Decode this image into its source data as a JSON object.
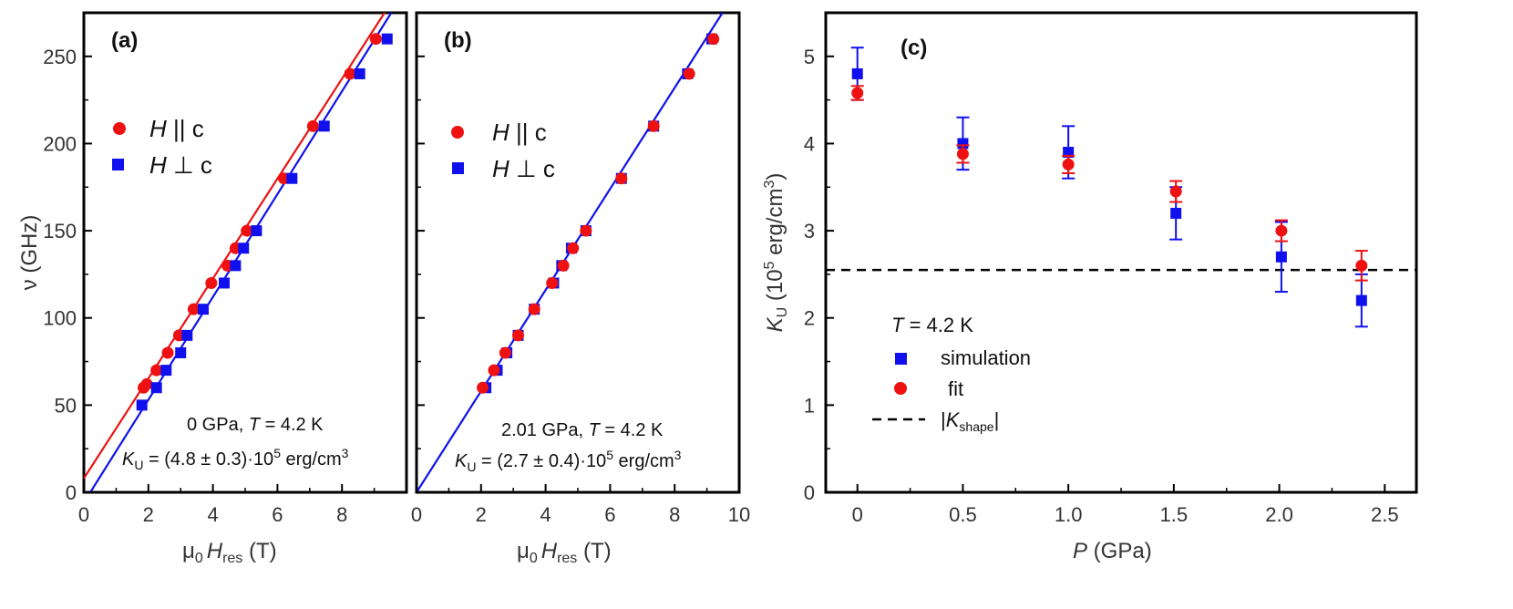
{
  "colors": {
    "red": "#ee1111",
    "blue": "#1010ee",
    "text": "#333333"
  },
  "chart_data": [
    {
      "type": "scatter",
      "panel": "(a)",
      "xlabel_base": "μ",
      "xlabel_sub0": "0",
      "xlabel_H": "H",
      "xlabel_sub": "res",
      "xlabel_unit": " (T)",
      "ylabel": "ν (GHz)",
      "xlim": [
        0,
        10
      ],
      "ylim": [
        0,
        275
      ],
      "xticks": [
        "0",
        "2",
        "4",
        "6",
        "8"
      ],
      "yticks": [
        "0",
        "50",
        "100",
        "150",
        "200",
        "250"
      ],
      "legend": [
        {
          "label_italic": "H",
          "label_rest": " || c",
          "marker": "circle",
          "color": "red"
        },
        {
          "label_italic": "H",
          "label_rest": " ⊥ c",
          "marker": "square",
          "color": "blue"
        }
      ],
      "annotation_line1_pre": "0 GPa, ",
      "annotation_line1_T": "T",
      "annotation_line1_post": " = 4.2 K",
      "annotation_line2_K": "K",
      "annotation_line2_sub": "U",
      "annotation_line2_post": " = (4.8 ± 0.3)·10",
      "annotation_line2_sup": "5",
      "annotation_line2_unit": " erg/cm",
      "annotation_line2_sup2": "3",
      "series": [
        {
          "name": "H || c",
          "color": "red",
          "marker": "circle",
          "x": [
            1.85,
            1.95,
            2.25,
            2.6,
            2.95,
            3.4,
            3.95,
            4.45,
            4.7,
            5.05,
            6.2,
            7.1,
            8.25,
            9.05
          ],
          "y": [
            60,
            62,
            70,
            80,
            90,
            105,
            120,
            130,
            140,
            150,
            180,
            210,
            240,
            260
          ],
          "fit_line": [
            [
              0,
              8
            ],
            [
              9.6,
              283
            ]
          ]
        },
        {
          "name": "H ⊥ c",
          "color": "blue",
          "marker": "square",
          "x": [
            1.8,
            2.25,
            2.55,
            3.0,
            3.2,
            3.7,
            4.35,
            4.7,
            4.95,
            5.35,
            6.45,
            7.45,
            8.55,
            9.4
          ],
          "y": [
            50,
            60,
            70,
            80,
            90,
            105,
            120,
            130,
            140,
            150,
            180,
            210,
            240,
            260
          ],
          "fit_line": [
            [
              0.2,
              0
            ],
            [
              9.8,
              283
            ]
          ]
        }
      ]
    },
    {
      "type": "scatter",
      "panel": "(b)",
      "xlabel_base": "μ",
      "xlabel_sub0": "0",
      "xlabel_H": "H",
      "xlabel_sub": "res",
      "xlabel_unit": " (T)",
      "xlim": [
        0,
        10
      ],
      "ylim": [
        0,
        275
      ],
      "xticks": [
        "0",
        "2",
        "4",
        "6",
        "8",
        "10"
      ],
      "legend": [
        {
          "label_italic": "H",
          "label_rest": " || c",
          "marker": "circle",
          "color": "red"
        },
        {
          "label_italic": "H",
          "label_rest": " ⊥ c",
          "marker": "square",
          "color": "blue"
        }
      ],
      "annotation_line1_pre": "2.01 GPa, ",
      "annotation_line1_T": "T",
      "annotation_line1_post": " = 4.2 K",
      "annotation_line2_K": "K",
      "annotation_line2_sub": "U",
      "annotation_line2_post": " = (2.7 ± 0.4)·10",
      "annotation_line2_sup": "5",
      "annotation_line2_unit": " erg/cm",
      "annotation_line2_sup2": "3",
      "series": [
        {
          "name": "H || c",
          "color": "red",
          "marker": "circle",
          "x": [
            2.05,
            2.4,
            2.75,
            3.15,
            3.65,
            4.2,
            4.55,
            4.85,
            5.25,
            6.35,
            7.35,
            8.45,
            9.2
          ],
          "y": [
            60,
            70,
            80,
            90,
            105,
            120,
            130,
            140,
            150,
            180,
            210,
            240,
            260
          ],
          "fit_line": []
        },
        {
          "name": "H ⊥ c",
          "color": "blue",
          "marker": "square",
          "x": [
            2.15,
            2.5,
            2.8,
            3.15,
            3.65,
            4.25,
            4.5,
            4.8,
            5.25,
            6.35,
            7.35,
            8.4,
            9.15
          ],
          "y": [
            60,
            70,
            80,
            90,
            105,
            120,
            130,
            140,
            150,
            180,
            210,
            240,
            260
          ],
          "fit_line": [
            [
              0,
              0
            ],
            [
              10,
              290
            ]
          ]
        }
      ]
    },
    {
      "type": "scatter",
      "panel": "(c)",
      "xlabel_italic": "P",
      "xlabel_rest": " (GPa)",
      "ylabel_K": "K",
      "ylabel_sub": "U",
      "ylabel_post": " (10",
      "ylabel_sup": "5",
      "ylabel_unit": " erg/cm",
      "ylabel_sup2": "3",
      "ylabel_close": ")",
      "xlim": [
        -0.15,
        2.65
      ],
      "ylim": [
        0,
        5.5
      ],
      "xticks": [
        "0",
        "0.5",
        "1.0",
        "1.5",
        "2.0",
        "2.5"
      ],
      "yticks": [
        "0",
        "1",
        "2",
        "3",
        "4",
        "5"
      ],
      "legend_title_T": "T",
      "legend_title_post": " = 4.2 K",
      "legend_simulation": "simulation",
      "legend_fit": "fit",
      "legend_shape_pre": "|",
      "legend_shape_K": "K",
      "legend_shape_sub": "shape",
      "legend_shape_post": "|",
      "shape_line_value": 2.55,
      "series": [
        {
          "name": "simulation",
          "color": "blue",
          "marker": "square",
          "x": [
            0,
            0.5,
            1.0,
            1.51,
            2.01,
            2.39
          ],
          "y": [
            4.8,
            4.0,
            3.9,
            3.2,
            2.7,
            2.2
          ],
          "err": [
            0.3,
            0.3,
            0.3,
            0.3,
            0.4,
            0.3
          ]
        },
        {
          "name": "fit",
          "color": "red",
          "marker": "circle",
          "x": [
            0,
            0.5,
            1.0,
            1.51,
            2.01,
            2.39
          ],
          "y": [
            4.58,
            3.88,
            3.76,
            3.45,
            3.0,
            2.6
          ],
          "err": [
            0.08,
            0.1,
            0.1,
            0.12,
            0.12,
            0.17
          ]
        }
      ]
    }
  ]
}
